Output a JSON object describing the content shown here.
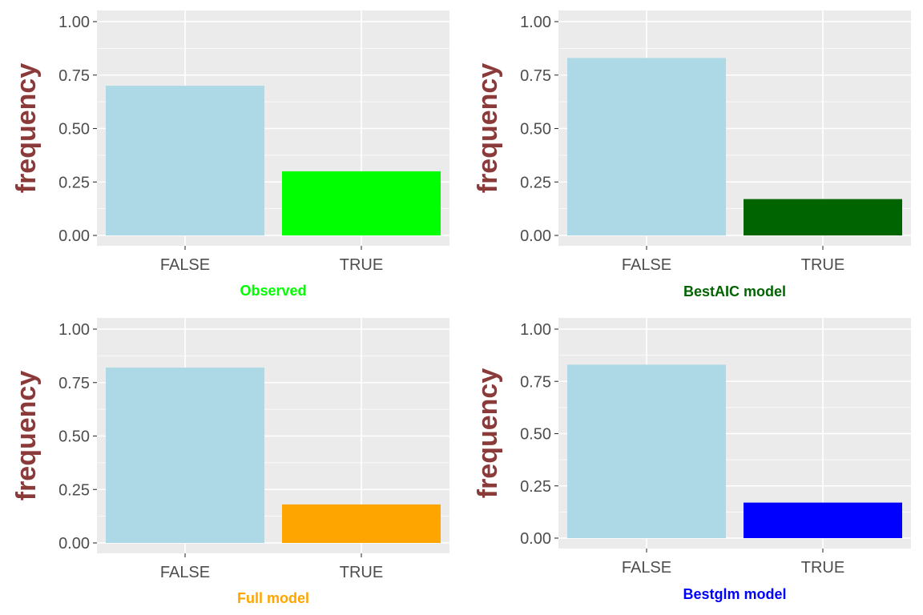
{
  "chart_data": [
    {
      "type": "bar",
      "categories": [
        "FALSE",
        "TRUE"
      ],
      "values": [
        0.7,
        0.3
      ],
      "colors": [
        "#add8e6",
        "#00ff00"
      ],
      "title": "",
      "xlabel": "Observed",
      "xlabel_color": "#00ff00",
      "ylabel": "frequency",
      "ylabel_color": "#8b3a3a",
      "ylim": [
        0,
        1.05
      ],
      "yticks": [
        "0.00",
        "0.25",
        "0.50",
        "0.75",
        "1.00"
      ],
      "grid": true,
      "legend": "none"
    },
    {
      "type": "bar",
      "categories": [
        "FALSE",
        "TRUE"
      ],
      "values": [
        0.83,
        0.17
      ],
      "colors": [
        "#add8e6",
        "#006400"
      ],
      "title": "",
      "xlabel": "BestAIC model",
      "xlabel_color": "#006400",
      "ylabel": "frequency",
      "ylabel_color": "#8b3a3a",
      "ylim": [
        0,
        1.05
      ],
      "yticks": [
        "0.00",
        "0.25",
        "0.50",
        "0.75",
        "1.00"
      ],
      "grid": true,
      "legend": "none"
    },
    {
      "type": "bar",
      "categories": [
        "FALSE",
        "TRUE"
      ],
      "values": [
        0.82,
        0.18
      ],
      "colors": [
        "#add8e6",
        "#ffa500"
      ],
      "title": "",
      "xlabel": "Full model",
      "xlabel_color": "#ffa500",
      "ylabel": "frequency",
      "ylabel_color": "#8b3a3a",
      "ylim": [
        0,
        1.05
      ],
      "yticks": [
        "0.00",
        "0.25",
        "0.50",
        "0.75",
        "1.00"
      ],
      "grid": true,
      "legend": "none"
    },
    {
      "type": "bar",
      "categories": [
        "FALSE",
        "TRUE"
      ],
      "values": [
        0.83,
        0.17
      ],
      "colors": [
        "#add8e6",
        "#0000ff"
      ],
      "title": "",
      "xlabel": "Bestglm model",
      "xlabel_color": "#0000ff",
      "ylabel": "frequency",
      "ylabel_color": "#8b3a3a",
      "ylim": [
        0,
        1.05
      ],
      "yticks": [
        "0.00",
        "0.25",
        "0.50",
        "0.75",
        "1.00"
      ],
      "grid": true,
      "legend": "none"
    }
  ]
}
